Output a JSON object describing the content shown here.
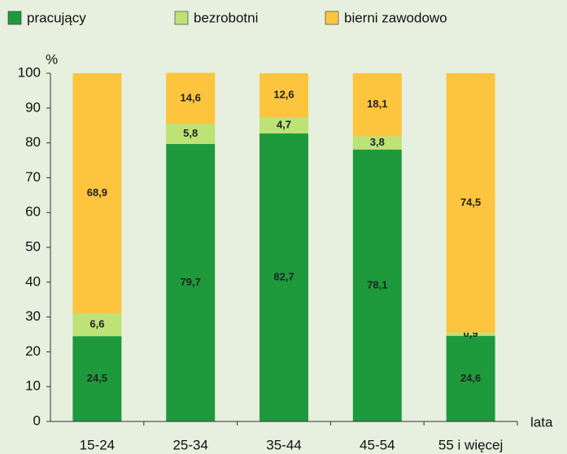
{
  "chart_data": {
    "type": "stacked_bar",
    "y_label": "%",
    "x_label": "lata",
    "categories": [
      "15-24",
      "25-34",
      "35-44",
      "45-54",
      "55 i więcej"
    ],
    "series": [
      {
        "name": "pracujący",
        "color": "#1e9a3c",
        "values": [
          24.5,
          79.7,
          82.7,
          78.1,
          24.6
        ],
        "value_labels": [
          "24,5",
          "79,7",
          "82,7",
          "78,1",
          "24,6"
        ]
      },
      {
        "name": "bezrobotni",
        "color": "#bde276",
        "values": [
          6.6,
          5.8,
          4.7,
          3.8,
          0.9
        ],
        "value_labels": [
          "6,6",
          "5,8",
          "4,7",
          "3,8",
          "0,9"
        ]
      },
      {
        "name": "bierni zawodowo",
        "color": "#fdc43e",
        "values": [
          68.9,
          14.6,
          12.6,
          18.1,
          74.5
        ],
        "value_labels": [
          "68,9",
          "14,6",
          "12,6",
          "18,1",
          "74,5"
        ]
      }
    ],
    "ylim": [
      0,
      100
    ],
    "yticks": [
      0,
      10,
      20,
      30,
      40,
      50,
      60,
      70,
      80,
      90,
      100
    ]
  }
}
